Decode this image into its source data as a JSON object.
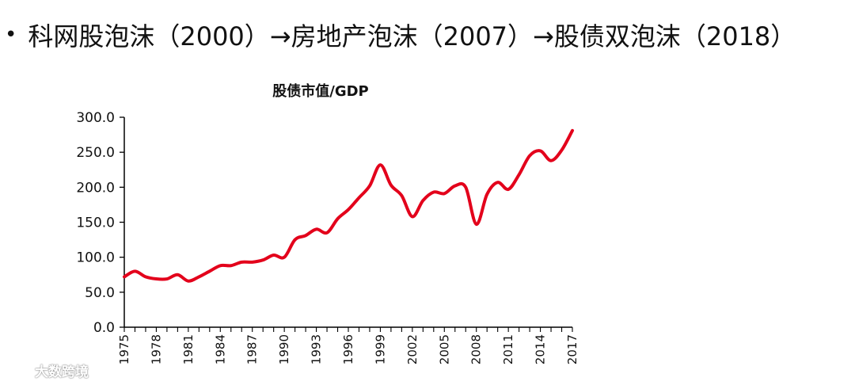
{
  "headline": {
    "bullet": "•",
    "text": "科网股泡沫（2000）→房地产泡沫（2007）→股债双泡沫（2018）"
  },
  "watermark": {
    "text": "大数跨境"
  },
  "colors": {
    "series": "#e3001b",
    "axis": "#000000",
    "text": "#111111"
  },
  "chart_data": {
    "type": "line",
    "title": "股债市值/GDP",
    "xlabel": "",
    "ylabel": "",
    "ylim": [
      0,
      300
    ],
    "xlim": [
      1975,
      2017
    ],
    "grid": false,
    "legend": "none",
    "y_ticks": [
      "0.0",
      "50.0",
      "100.0",
      "150.0",
      "200.0",
      "250.0",
      "300.0"
    ],
    "x_ticks": [
      "1975",
      "1978",
      "1981",
      "1984",
      "1987",
      "1990",
      "1993",
      "1996",
      "1999",
      "2002",
      "2005",
      "2008",
      "2011",
      "2014",
      "2017"
    ],
    "series": [
      {
        "name": "股债市值/GDP",
        "x": [
          1975,
          1976,
          1977,
          1978,
          1979,
          1980,
          1981,
          1982,
          1983,
          1984,
          1985,
          1986,
          1987,
          1988,
          1989,
          1990,
          1991,
          1992,
          1993,
          1994,
          1995,
          1996,
          1997,
          1998,
          1999,
          2000,
          2001,
          2002,
          2003,
          2004,
          2005,
          2006,
          2007,
          2008,
          2009,
          2010,
          2011,
          2012,
          2013,
          2014,
          2015,
          2016,
          2017
        ],
        "values": [
          72,
          80,
          72,
          69,
          69,
          75,
          66,
          72,
          80,
          88,
          88,
          93,
          93,
          96,
          103,
          100,
          125,
          131,
          140,
          135,
          155,
          168,
          185,
          202,
          232,
          203,
          188,
          158,
          181,
          193,
          191,
          202,
          200,
          147,
          190,
          207,
          197,
          218,
          245,
          252,
          238,
          253,
          281
        ]
      }
    ]
  }
}
